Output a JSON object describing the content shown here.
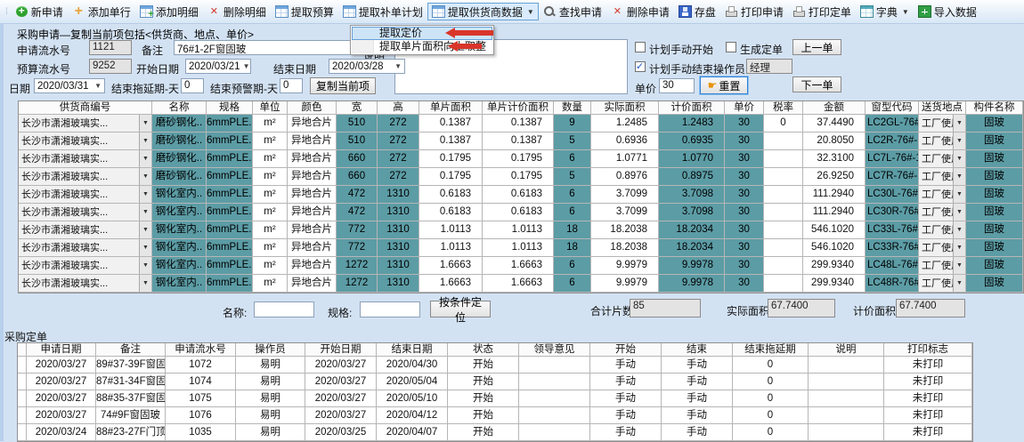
{
  "colors": {
    "selection_blue": "#1f79dd",
    "cell_teal": "#5c9ca5",
    "toolbar_bg": "#e7f0fa"
  },
  "toolbar": {
    "items": [
      {
        "name": "new-application-button",
        "icon": "new-icon",
        "label": "新申请"
      },
      {
        "name": "add-single-row-button",
        "icon": "add-row-icon",
        "label": "添加单行"
      },
      {
        "name": "add-detail-button",
        "icon": "add-detail-icon",
        "label": "添加明细"
      },
      {
        "name": "delete-detail-button",
        "icon": "delete-icon",
        "label": "删除明细"
      },
      {
        "name": "extract-budget-button",
        "icon": "table-icon",
        "label": "提取预算"
      },
      {
        "name": "extract-supplement-plan-button",
        "icon": "table-icon",
        "label": "提取补单计划"
      },
      {
        "name": "extract-supplier-data-button",
        "icon": "table-icon",
        "label": "提取供货商数据",
        "dropdown": true,
        "open": true
      },
      {
        "name": "find-application-button",
        "icon": "search-icon",
        "label": "查找申请"
      },
      {
        "name": "delete-application-button",
        "icon": "delete-icon",
        "label": "删除申请"
      },
      {
        "name": "save-button",
        "icon": "save-icon",
        "label": "存盘"
      },
      {
        "name": "print-application-button",
        "icon": "printer-icon",
        "label": "打印申请"
      },
      {
        "name": "print-order-button",
        "icon": "printer-icon",
        "label": "打印定单"
      },
      {
        "name": "dictionary-button",
        "icon": "dictionary-icon",
        "label": "字典",
        "dropdown": true
      },
      {
        "name": "import-data-button",
        "icon": "import-icon",
        "label": "导入数据"
      }
    ]
  },
  "context_menu": {
    "items": [
      {
        "name": "menu-item-extract-pricing",
        "label": "提取定价",
        "highlighted": true
      },
      {
        "name": "menu-item-extract-area-roundup",
        "label": "提取单片面积向上取整",
        "highlighted": false
      }
    ]
  },
  "form": {
    "title": "采购申请—复制当前项包括<供货商、地点、单价>",
    "apply_no_label": "申请流水号",
    "apply_no": "1121",
    "remark_label": "备注",
    "remark": "76#1-2F窗固玻",
    "note_label": "说明",
    "note": "",
    "budget_no_label": "预算流水号",
    "budget_no": "9252",
    "start_date_label": "开始日期",
    "start_date": "2020/03/21",
    "end_date_label": "结束日期",
    "end_date": "2020/03/28",
    "date_label": "日期",
    "date": "2020/03/31",
    "delay_label": "结束拖延期-天",
    "delay": "0",
    "warn_label": "结束预警期-天",
    "warn": "0",
    "copy_button": "复制当前项",
    "cb_manual_start": "计划手动开始",
    "cb_generate_order": "生成定单",
    "cb_manual_end": "计划手动结束",
    "operator_label": "操作员",
    "operator": "经理",
    "price_label": "单价",
    "price": "30",
    "reset_button": "重置",
    "prev_button": "上一单",
    "next_button": "下一单"
  },
  "detail_table": {
    "columns": [
      "供货商编号",
      "名称",
      "规格",
      "单位",
      "颜色",
      "宽",
      "高",
      "单片面积",
      "单片计价面积",
      "数量",
      "实际面积",
      "计价面积",
      "单价",
      "税率",
      "金额",
      "窗型代码",
      "送货地点",
      "构件名称"
    ],
    "selected_row": 0,
    "rows": [
      [
        "长沙市潇湘玻璃实...",
        "磨砂钢化..",
        "6mmPLE...",
        "m²",
        "异地合片",
        "510",
        "272",
        "0.1387",
        "0.1387",
        "9",
        "1.2485",
        "1.2483",
        "30",
        "0",
        "37.4490",
        "LC2GL-76#...",
        "工厂使用",
        "固玻"
      ],
      [
        "长沙市潇湘玻璃实...",
        "磨砂钢化..",
        "6mmPLE...",
        "m²",
        "异地合片",
        "510",
        "272",
        "0.1387",
        "0.1387",
        "5",
        "0.6936",
        "0.6935",
        "30",
        "",
        "20.8050",
        "LC2R-76#-1F",
        "工厂使用",
        "固玻"
      ],
      [
        "长沙市潇湘玻璃实...",
        "磨砂钢化..",
        "6mmPLE...",
        "m²",
        "异地合片",
        "660",
        "272",
        "0.1795",
        "0.1795",
        "6",
        "1.0771",
        "1.0770",
        "30",
        "",
        "32.3100",
        "LC7L-76#-1FO",
        "工厂使用",
        "固玻"
      ],
      [
        "长沙市潇湘玻璃实...",
        "磨砂钢化..",
        "6mmPLE...",
        "m²",
        "异地合片",
        "660",
        "272",
        "0.1795",
        "0.1795",
        "5",
        "0.8976",
        "0.8975",
        "30",
        "",
        "26.9250",
        "LC7R-76#-1FO",
        "工厂使用",
        "固玻"
      ],
      [
        "长沙市潇湘玻璃实...",
        "钢化室内..",
        "6mmPLE...",
        "m²",
        "异地合片",
        "472",
        "1310",
        "0.6183",
        "0.6183",
        "6",
        "3.7099",
        "3.7098",
        "30",
        "",
        "111.2940",
        "LC30L-76#...",
        "工厂使用",
        "固玻"
      ],
      [
        "长沙市潇湘玻璃实...",
        "钢化室内..",
        "6mmPLE...",
        "m²",
        "异地合片",
        "472",
        "1310",
        "0.6183",
        "0.6183",
        "6",
        "3.7099",
        "3.7098",
        "30",
        "",
        "111.2940",
        "LC30R-76#...",
        "工厂使用",
        "固玻"
      ],
      [
        "长沙市潇湘玻璃实...",
        "钢化室内..",
        "6mmPLE...",
        "m²",
        "异地合片",
        "772",
        "1310",
        "1.0113",
        "1.0113",
        "18",
        "18.2038",
        "18.2034",
        "30",
        "",
        "546.1020",
        "LC33L-76#...",
        "工厂使用",
        "固玻"
      ],
      [
        "长沙市潇湘玻璃实...",
        "钢化室内..",
        "6mmPLE...",
        "m²",
        "异地合片",
        "772",
        "1310",
        "1.0113",
        "1.0113",
        "18",
        "18.2038",
        "18.2034",
        "30",
        "",
        "546.1020",
        "LC33R-76#...",
        "工厂使用",
        "固玻"
      ],
      [
        "长沙市潇湘玻璃实...",
        "钢化室内..",
        "6mmPLE...",
        "m²",
        "异地合片",
        "1272",
        "1310",
        "1.6663",
        "1.6663",
        "6",
        "9.9979",
        "9.9978",
        "30",
        "",
        "299.9340",
        "LC48L-76#...",
        "工厂使用",
        "固玻"
      ],
      [
        "长沙市潇湘玻璃实...",
        "钢化室内..",
        "6mmPLE...",
        "m²",
        "异地合片",
        "1272",
        "1310",
        "1.6663",
        "1.6663",
        "6",
        "9.9979",
        "9.9978",
        "30",
        "",
        "299.9340",
        "LC48R-76#...",
        "工厂使用",
        "固玻"
      ]
    ]
  },
  "locator": {
    "name_label": "名称:",
    "name_value": "",
    "spec_label": "规格:",
    "spec_value": "",
    "button": "按条件定位",
    "total_pieces_label": "合计片数",
    "total_pieces": "85",
    "actual_area_label": "实际面积",
    "actual_area": "67.7400",
    "priced_area_label": "计价面积",
    "priced_area": "67.7400"
  },
  "orders": {
    "title": "采购定单",
    "columns": [
      "申请日期",
      "备注",
      "申请流水号",
      "操作员",
      "开始日期",
      "结束日期",
      "状态",
      "领导意见",
      "开始",
      "结束",
      "结束拖延期",
      "说明",
      "打印标志"
    ],
    "selected_row": 0,
    "rows": [
      [
        "2020/03/27",
        "89#37-39F窗固玻",
        "1072",
        "易明",
        "2020/03/27",
        "2020/04/30",
        "开始",
        "",
        "手动",
        "手动",
        "0",
        "",
        "未打印"
      ],
      [
        "2020/03/27",
        "87#31-34F窗固玻",
        "1074",
        "易明",
        "2020/03/27",
        "2020/05/04",
        "开始",
        "",
        "手动",
        "手动",
        "0",
        "",
        "未打印"
      ],
      [
        "2020/03/27",
        "88#35-37F窗固玻",
        "1075",
        "易明",
        "2020/03/27",
        "2020/05/10",
        "开始",
        "",
        "手动",
        "手动",
        "0",
        "",
        "未打印"
      ],
      [
        "2020/03/27",
        "74#9F窗固玻",
        "1076",
        "易明",
        "2020/03/27",
        "2020/04/12",
        "开始",
        "",
        "手动",
        "手动",
        "0",
        "",
        "未打印"
      ],
      [
        "2020/03/24",
        "88#23-27F门顶玻",
        "1035",
        "易明",
        "2020/03/25",
        "2020/04/07",
        "开始",
        "",
        "手动",
        "手动",
        "0",
        "",
        "未打印"
      ]
    ]
  }
}
